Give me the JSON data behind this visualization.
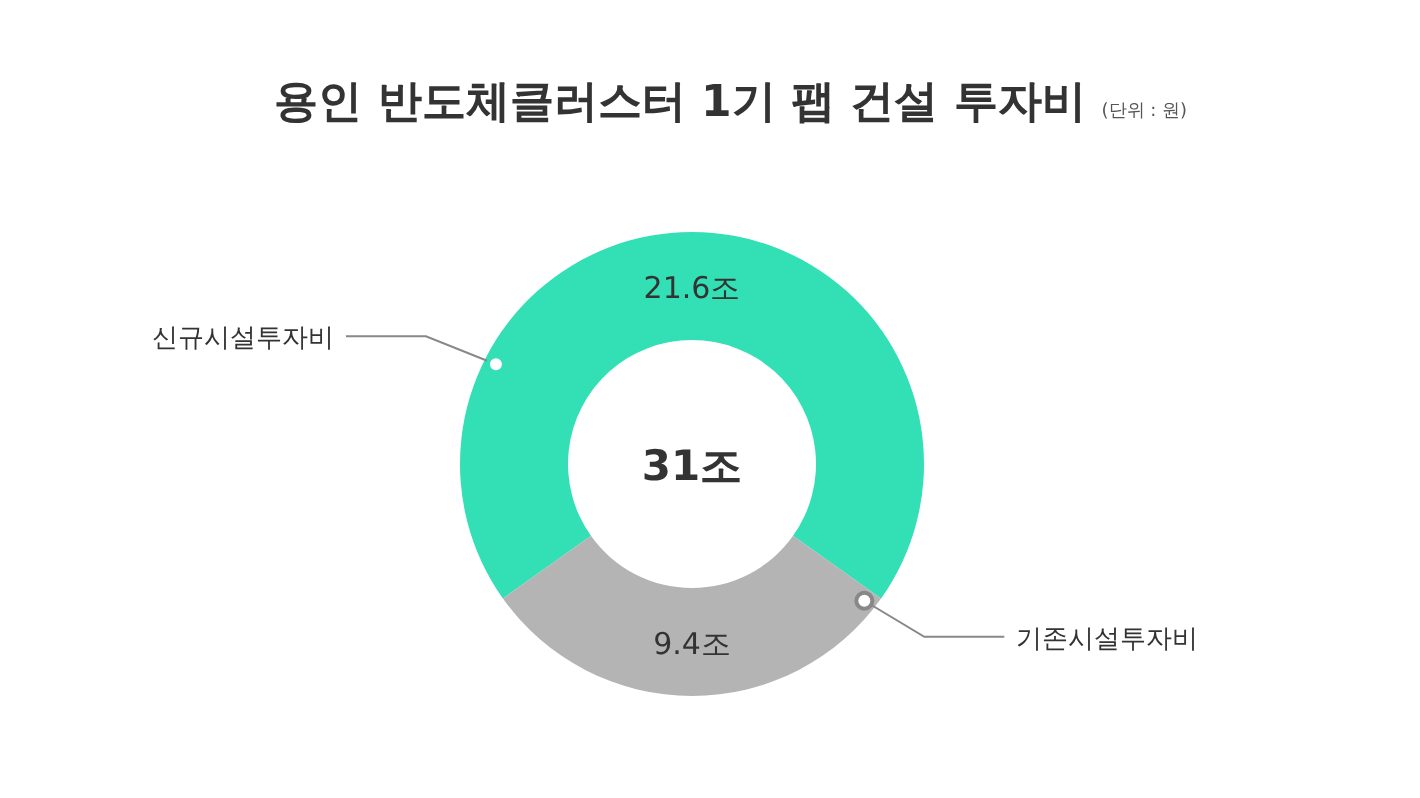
{
  "chart_data": {
    "type": "donut",
    "title": "용인 반도체클러스터 1기 팹 건설 투자비",
    "subtitle": "(단위 : 원)",
    "categories": [
      "신규시설투자비",
      "기존시설투자비"
    ],
    "values": [
      21.6,
      9.4
    ],
    "colors": [
      "#33dfb4",
      "#b4b4b4"
    ],
    "value_labels": [
      "21.6조",
      "9.4조"
    ],
    "annotations": [
      "31조"
    ]
  }
}
